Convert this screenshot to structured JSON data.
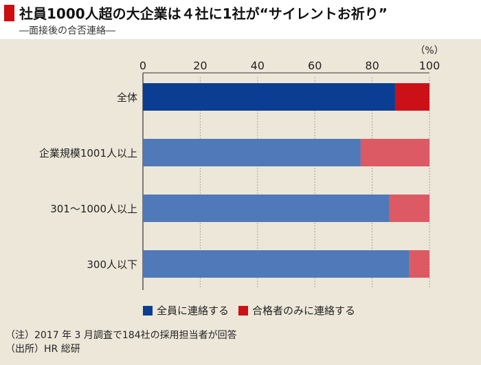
{
  "header": {
    "title": "社員1000人超の大企業は４社に1社が“サイレントお祈り”",
    "subtitle": "―面接後の合否連絡―"
  },
  "colors": {
    "title_marker": "#cc0e12",
    "all_contact": "#0b3e92",
    "all_contact_light": "#4f79b8",
    "passers_only": "#cc1017",
    "passers_only_light": "#db5a63"
  },
  "legend": {
    "items": [
      {
        "label": "全員に連絡する",
        "color": "#0b3e92"
      },
      {
        "label": "合格者のみに連絡する",
        "color": "#cc1017"
      }
    ]
  },
  "notes": {
    "note": "（注）2017 年 3 月調査で184社の採用担当者が回答",
    "source": "（出所）HR 総研"
  },
  "chart_data": {
    "type": "bar",
    "orientation": "horizontal",
    "stacked": true,
    "unit_label": "（%）",
    "xlim": [
      0,
      100
    ],
    "x_ticks": [
      0,
      20,
      40,
      60,
      80,
      100
    ],
    "grid": true,
    "categories": [
      "全体",
      "企業規模1001人以上",
      "301～1000人以上",
      "300人以下"
    ],
    "series": [
      {
        "name": "全員に連絡する",
        "values": [
          88,
          76,
          86,
          93
        ]
      },
      {
        "name": "合格者のみに連絡する",
        "values": [
          12,
          24,
          14,
          7
        ]
      }
    ]
  }
}
